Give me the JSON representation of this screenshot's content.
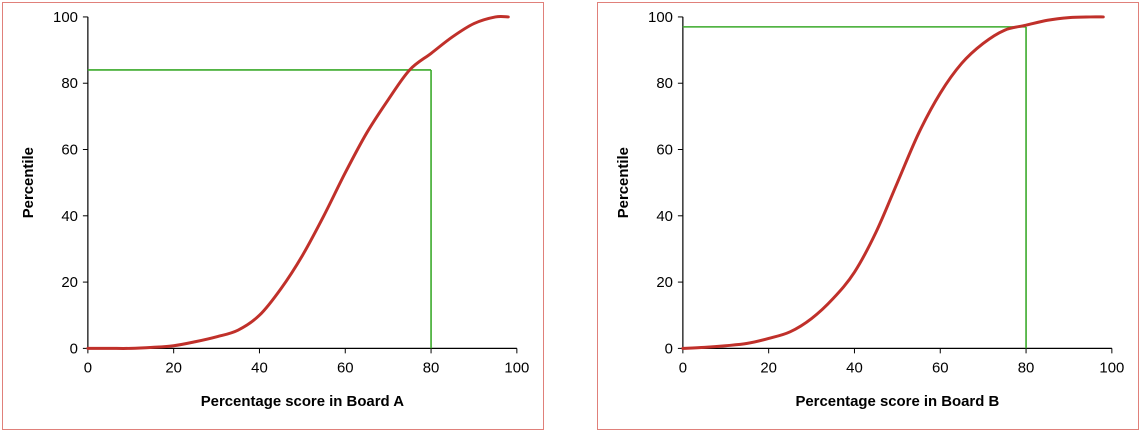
{
  "chart_data": [
    {
      "type": "line",
      "title": "",
      "xlabel": "Percentage score  in Board A",
      "ylabel": "Percentile",
      "xlim": [
        0,
        100
      ],
      "ylim": [
        0,
        100
      ],
      "xticks": [
        "0",
        "20",
        "40",
        "60",
        "80",
        "100"
      ],
      "yticks": [
        "0",
        "20",
        "40",
        "60",
        "80",
        "100"
      ],
      "grid": false,
      "legend": "none",
      "colors": {
        "curve": "#c0302a",
        "reference": "#3aaa2a",
        "frame": "#e0807a"
      },
      "series": [
        {
          "x": [
            0,
            5,
            10,
            15,
            20,
            25,
            30,
            35,
            40,
            45,
            50,
            55,
            60,
            65,
            70,
            75,
            80,
            85,
            90,
            95,
            98
          ],
          "y": [
            0,
            0,
            0,
            0.3,
            0.8,
            2,
            3.5,
            5.5,
            10,
            18,
            28,
            40,
            53,
            65,
            75,
            84,
            89,
            94,
            98,
            100,
            100
          ]
        }
      ],
      "reference_point": {
        "x": 80,
        "y": 84
      }
    },
    {
      "type": "line",
      "title": "",
      "xlabel": "Percentage score  in Board  B",
      "ylabel": "Percentile",
      "xlim": [
        0,
        100
      ],
      "ylim": [
        0,
        100
      ],
      "xticks": [
        "0",
        "20",
        "40",
        "60",
        "80",
        "100"
      ],
      "yticks": [
        "0",
        "20",
        "40",
        "60",
        "80",
        "100"
      ],
      "grid": false,
      "legend": "none",
      "colors": {
        "curve": "#c0302a",
        "reference": "#3aaa2a",
        "frame": "#e0807a"
      },
      "series": [
        {
          "x": [
            0,
            5,
            10,
            15,
            20,
            25,
            30,
            35,
            40,
            45,
            50,
            55,
            60,
            65,
            70,
            75,
            80,
            85,
            90,
            95,
            98
          ],
          "y": [
            0,
            0.3,
            0.8,
            1.5,
            3,
            5,
            9,
            15,
            23,
            35,
            50,
            65,
            77,
            86,
            92,
            96,
            97.5,
            99,
            99.8,
            100,
            100
          ]
        }
      ],
      "reference_point": {
        "x": 80,
        "y": 97
      }
    }
  ]
}
